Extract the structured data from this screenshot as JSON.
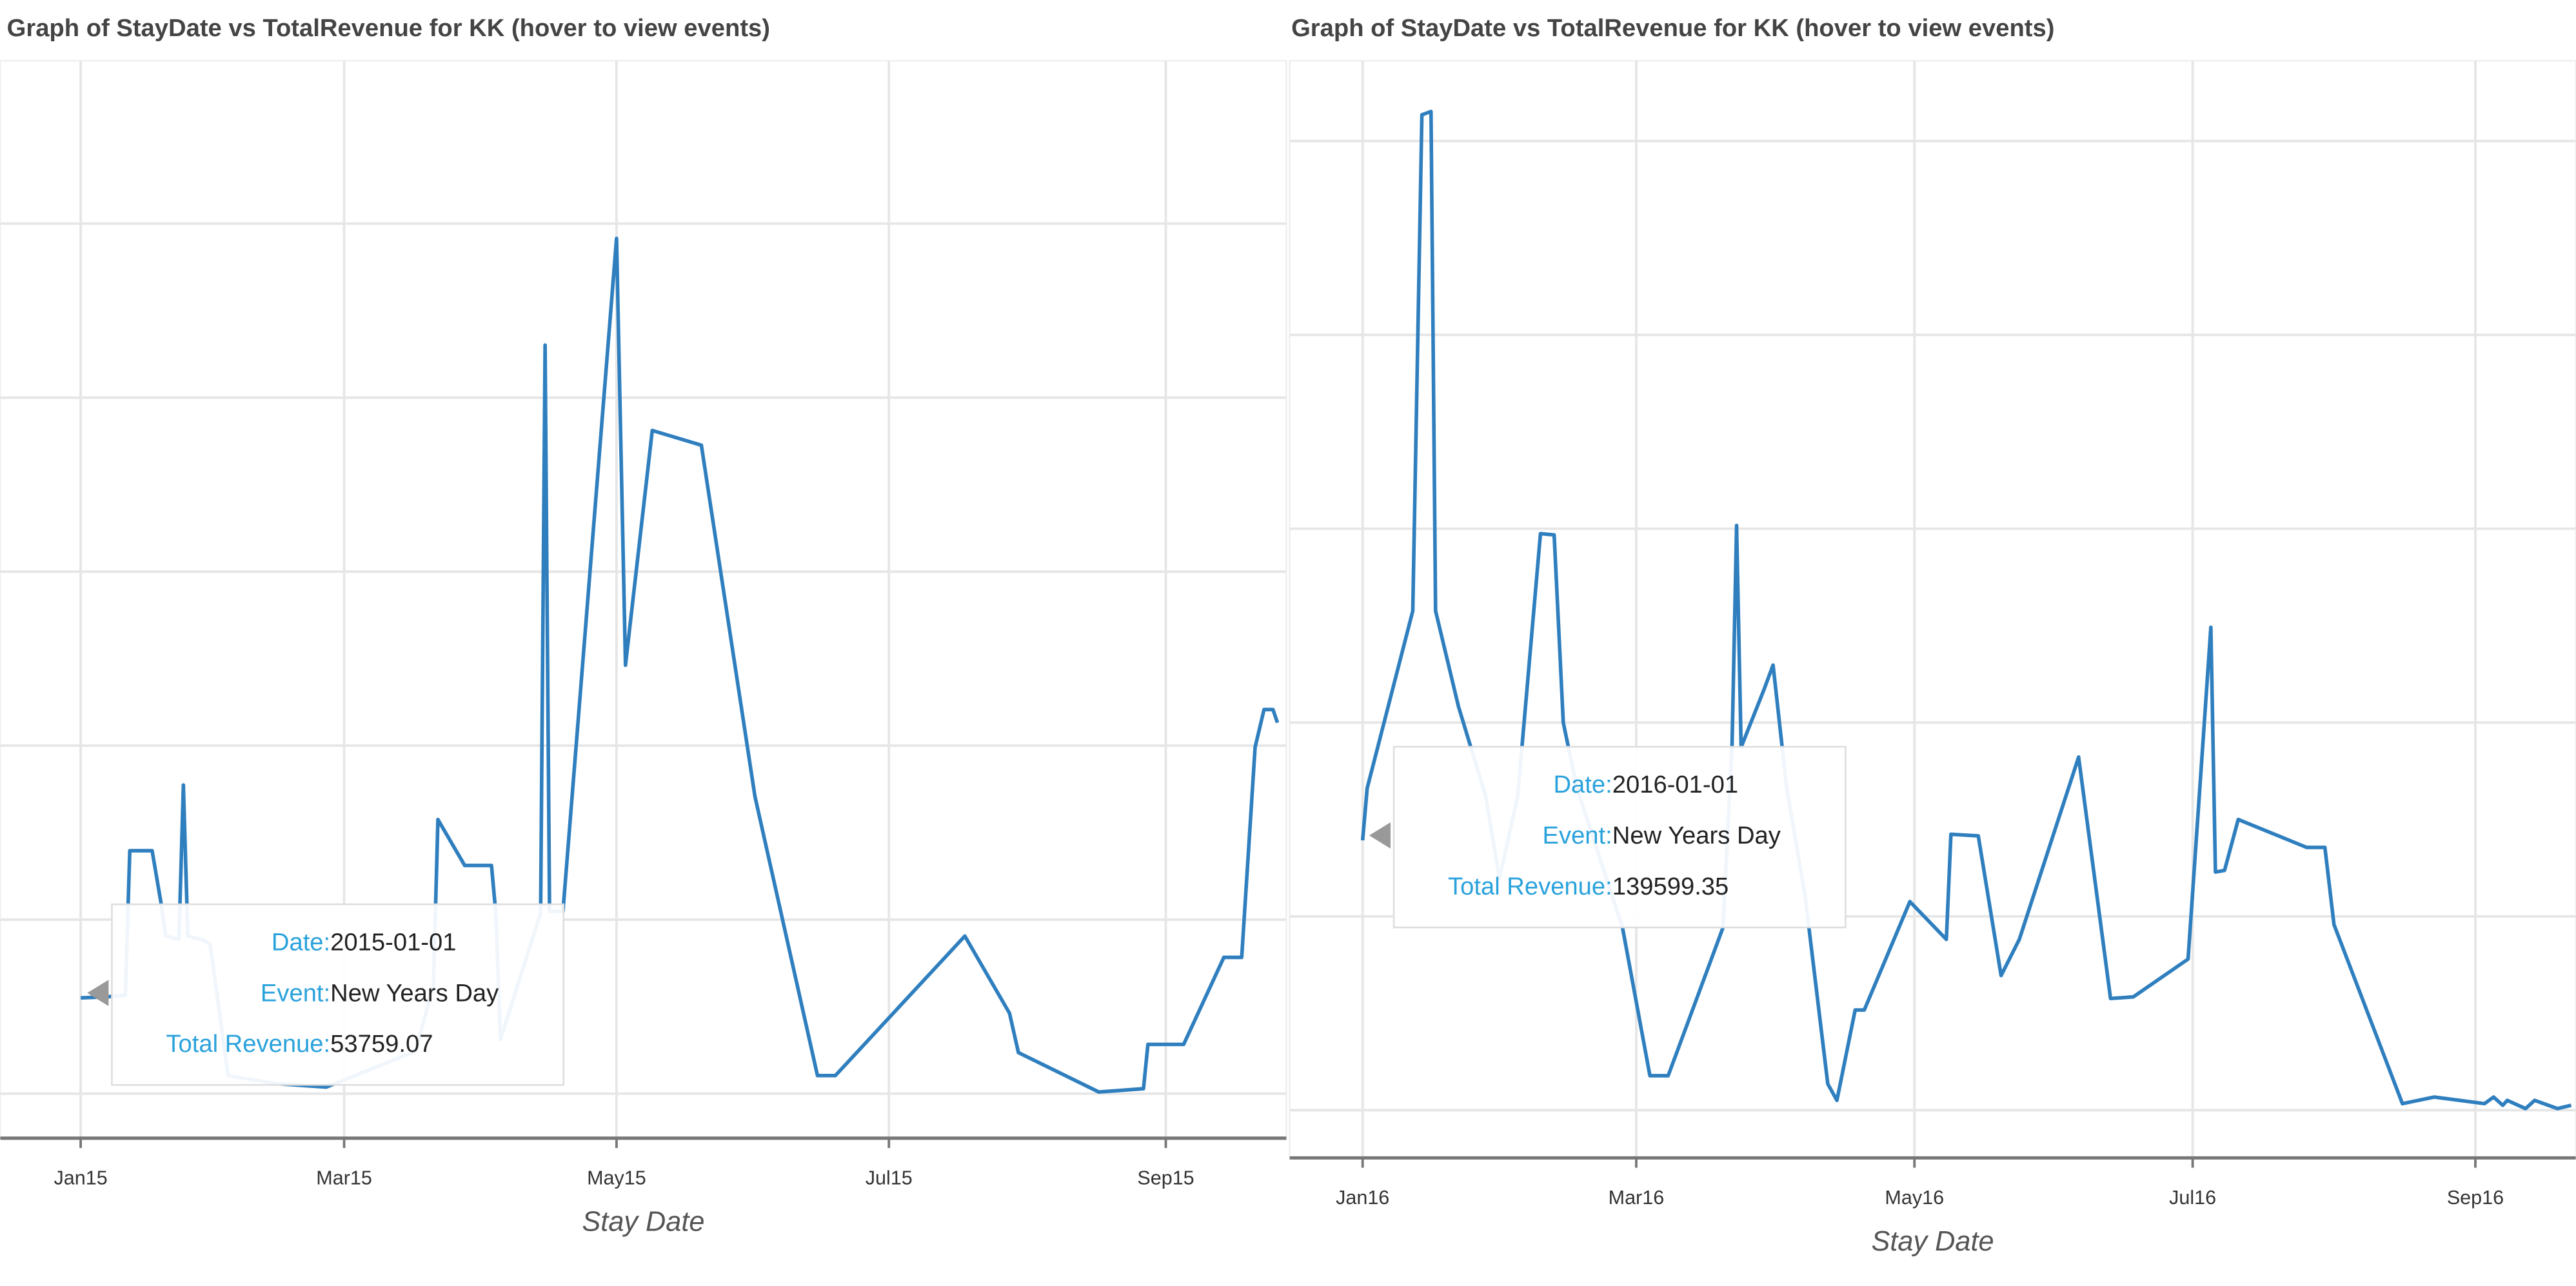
{
  "chart_data": [
    {
      "type": "line",
      "title": "Graph of StayDate vs TotalRevenue for KK (hover to view events)",
      "x_label": "Stay Date",
      "color": "#2f7fbf",
      "grid": true,
      "xlim": [
        "2014-12-14",
        "2015-09-28"
      ],
      "xticks": [
        {
          "value": "2015-01-01",
          "label": "Jan15"
        },
        {
          "value": "2015-03-01",
          "label": "Mar15"
        },
        {
          "value": "2015-05-01",
          "label": "May15"
        },
        {
          "value": "2015-07-01",
          "label": "Jul15"
        },
        {
          "value": "2015-09-01",
          "label": "Sep15"
        }
      ],
      "ylim": [
        33600,
        188400
      ],
      "yticks": [
        40000,
        65000,
        90000,
        115000,
        140000,
        165000
      ],
      "x": [
        "2015-01-01",
        "2015-01-07",
        "2015-01-11",
        "2015-01-12",
        "2015-01-17",
        "2015-01-19",
        "2015-01-20",
        "2015-01-23",
        "2015-01-24",
        "2015-01-25",
        "2015-01-28",
        "2015-01-30",
        "2015-02-03",
        "2015-02-14",
        "2015-02-25",
        "2015-03-08",
        "2015-03-17",
        "2015-03-21",
        "2015-03-22",
        "2015-03-28",
        "2015-04-03",
        "2015-04-04",
        "2015-04-05",
        "2015-04-14",
        "2015-04-15",
        "2015-04-16",
        "2015-04-19",
        "2015-05-01",
        "2015-05-03",
        "2015-05-09",
        "2015-05-20",
        "2015-06-01",
        "2015-06-15",
        "2015-06-19",
        "2015-07-18",
        "2015-07-28",
        "2015-07-30",
        "2015-08-17",
        "2015-08-27",
        "2015-08-28",
        "2015-09-05",
        "2015-09-14",
        "2015-09-18",
        "2015-09-21",
        "2015-09-23",
        "2015-09-25",
        "2015-09-26"
      ],
      "values": [
        53759.07,
        53915,
        54151,
        74906,
        74906,
        67359,
        62642,
        62170,
        84340,
        62642,
        62170,
        61462,
        42594,
        41415,
        40943,
        43774,
        46132,
        55566,
        79387,
        72783,
        72783,
        65708,
        47783,
        65944,
        147548,
        66180,
        66180,
        162878,
        101557,
        135283,
        133160,
        82689,
        42594,
        42594,
        62642,
        51557,
        45896,
        40236,
        40708,
        47076,
        47076,
        59576,
        59576,
        89764,
        95189,
        95189,
        93302
      ],
      "tooltip": {
        "date_label": "Date:",
        "date": "2015-01-01",
        "event_label": "Event:",
        "event": "New Years Day",
        "revenue_label": "Total Revenue:",
        "revenue": 53759.07
      }
    },
    {
      "type": "line",
      "title": "Graph of StayDate vs TotalRevenue for KK (hover to view events)",
      "x_label": "Stay Date",
      "color": "#2f7fbf",
      "grid": true,
      "xlim": [
        "2015-12-16",
        "2016-09-23"
      ],
      "xticks": [
        {
          "value": "2016-01-01",
          "label": "Jan16"
        },
        {
          "value": "2016-03-01",
          "label": "Mar16"
        },
        {
          "value": "2016-05-01",
          "label": "May16"
        },
        {
          "value": "2016-07-01",
          "label": "Jul16"
        },
        {
          "value": "2016-09-01",
          "label": "Sep16"
        }
      ],
      "ylim": [
        57700,
        340700
      ],
      "yticks": [
        70000,
        120000,
        170000,
        220000,
        270000,
        320000
      ],
      "x": [
        "2016-01-01",
        "2016-01-02",
        "2016-01-12",
        "2016-01-14",
        "2016-01-16",
        "2016-01-17",
        "2016-01-22",
        "2016-01-28",
        "2016-01-31",
        "2016-02-04",
        "2016-02-09",
        "2016-02-12",
        "2016-02-14",
        "2016-02-17",
        "2016-02-27",
        "2016-03-04",
        "2016-03-08",
        "2016-03-20",
        "2016-03-22",
        "2016-03-23",
        "2016-03-24",
        "2016-03-29",
        "2016-03-31",
        "2016-04-03",
        "2016-04-07",
        "2016-04-12",
        "2016-04-14",
        "2016-04-18",
        "2016-04-20",
        "2016-04-30",
        "2016-05-08",
        "2016-05-09",
        "2016-05-15",
        "2016-05-20",
        "2016-05-24",
        "2016-06-06",
        "2016-06-13",
        "2016-06-18",
        "2016-06-30",
        "2016-07-05",
        "2016-07-06",
        "2016-07-08",
        "2016-07-11",
        "2016-07-26",
        "2016-07-30",
        "2016-08-01",
        "2016-08-16",
        "2016-08-23",
        "2016-09-03",
        "2016-09-05",
        "2016-09-07",
        "2016-09-08",
        "2016-09-12",
        "2016-09-14",
        "2016-09-19",
        "2016-09-22"
      ],
      "values": [
        139599.35,
        153045,
        198805,
        326762,
        327610,
        198805,
        174230,
        150927,
        129742,
        150927,
        218719,
        218405,
        169993,
        153045,
        117031,
        78898,
        78898,
        117031,
        163638,
        220837,
        163638,
        178467,
        184823,
        153045,
        125505,
        76779,
        72542,
        95846,
        95846,
        123810,
        114065,
        141182,
        140758,
        104743,
        114065,
        161096,
        98812,
        99235,
        108980,
        194568,
        131437,
        131860,
        144995,
        137792,
        137792,
        117878,
        71695,
        73390,
        71695,
        73390,
        71271,
        72542,
        70424,
        72542,
        70424,
        71271
      ],
      "tooltip": {
        "date_label": "Date:",
        "date": "2016-01-01",
        "event_label": "Event:",
        "event": "New Years Day",
        "revenue_label": "Total Revenue:",
        "revenue": 139599.35
      }
    }
  ]
}
